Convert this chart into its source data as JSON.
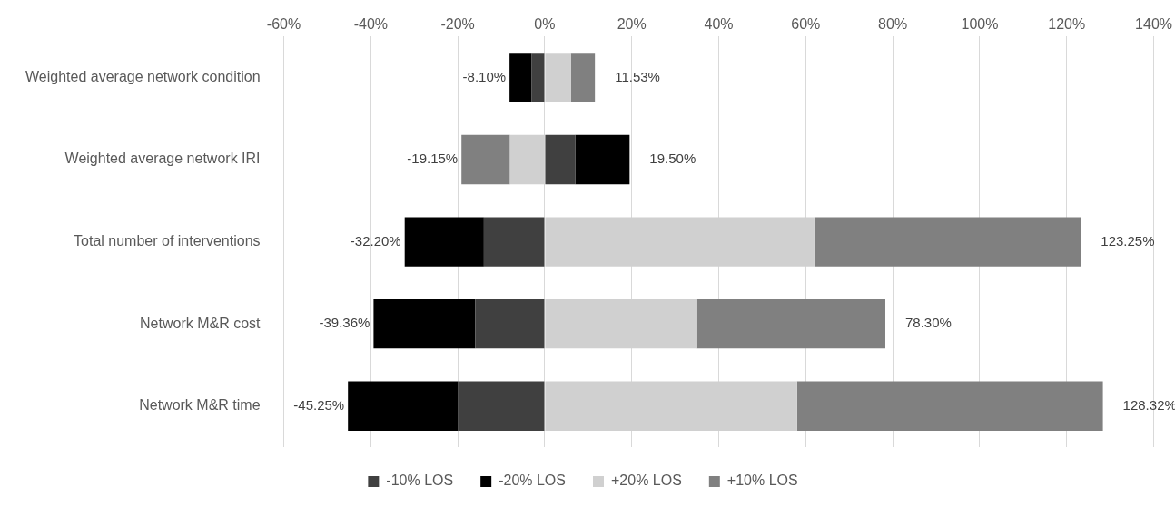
{
  "chart_data": {
    "type": "bar",
    "orientation": "horizontal",
    "stacked": true,
    "categories": [
      "Weighted average network condition",
      "Weighted average network IRI",
      "Total number of interventions",
      "Network M&R cost",
      "Network M&R time"
    ],
    "series": [
      {
        "name": "-10% LOS",
        "color": "#404040",
        "values": [
          -3,
          7,
          -14,
          -16,
          -20
        ]
      },
      {
        "name": "-20% LOS",
        "color": "#000000",
        "values": [
          -5.1,
          12.5,
          -18.2,
          -23.36,
          -25.25
        ]
      },
      {
        "name": "+20% LOS",
        "color": "#d0d0d0",
        "values": [
          6,
          -8,
          62,
          35,
          58
        ]
      },
      {
        "name": "+10% LOS",
        "color": "#808080",
        "values": [
          5.53,
          -11.15,
          61.25,
          43.3,
          70.32
        ]
      }
    ],
    "annotations": [
      {
        "text": "-8.10%",
        "x": -8.1,
        "y": "Weighted average network condition"
      },
      {
        "text": "11.53%",
        "x": 11.53,
        "y": "Weighted average network condition"
      },
      {
        "text": "-19.15%",
        "x": -19.15,
        "y": "Weighted average network IRI"
      },
      {
        "text": "19.50%",
        "x": 19.5,
        "y": "Weighted average network IRI"
      },
      {
        "text": "-32.20%",
        "x": -32.2,
        "y": "Total number of interventions"
      },
      {
        "text": "123.25%",
        "x": 123.25,
        "y": "Total number of interventions"
      },
      {
        "text": "-39.36%",
        "x": -39.36,
        "y": "Network M&R cost"
      },
      {
        "text": "78.30%",
        "x": 78.3,
        "y": "Network M&R cost"
      },
      {
        "text": "-45.25%",
        "x": -45.25,
        "y": "Network M&R time"
      },
      {
        "text": "128.32%",
        "x": 128.32,
        "y": "Network M&R time"
      }
    ],
    "xlim": [
      -60,
      140
    ],
    "xticks": [
      {
        "value": -60,
        "label": "-60%"
      },
      {
        "value": -40,
        "label": "-40%"
      },
      {
        "value": -20,
        "label": "-20%"
      },
      {
        "value": 0,
        "label": "0%"
      },
      {
        "value": 20,
        "label": "20%"
      },
      {
        "value": 40,
        "label": "40%"
      },
      {
        "value": 60,
        "label": "60%"
      },
      {
        "value": 80,
        "label": "80%"
      },
      {
        "value": 100,
        "label": "100%"
      },
      {
        "value": 120,
        "label": "120%"
      },
      {
        "value": 140,
        "label": "140%"
      }
    ],
    "grid": "x",
    "legend": "bottom"
  }
}
